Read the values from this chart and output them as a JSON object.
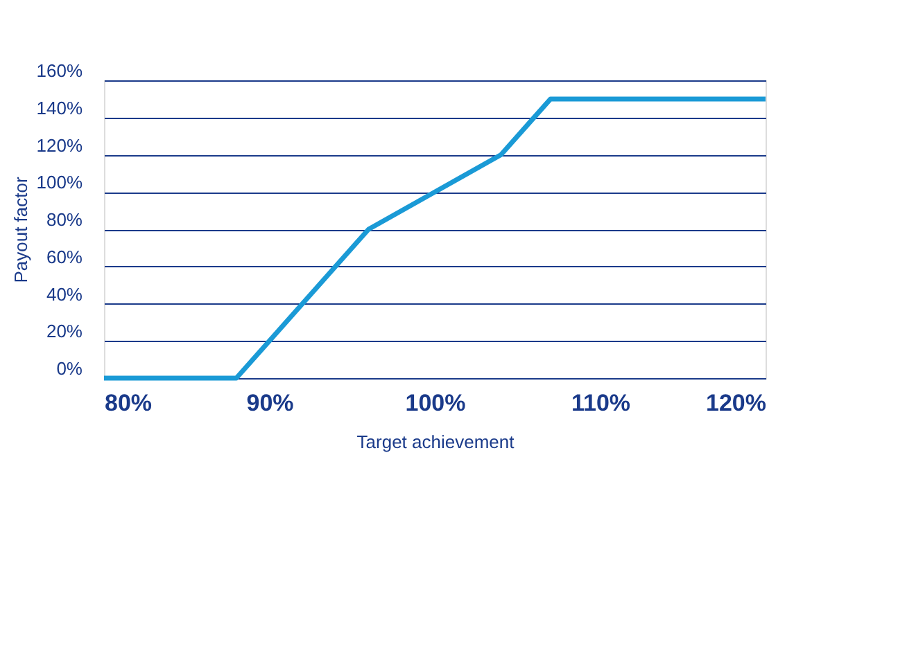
{
  "chart_data": {
    "type": "line",
    "xlabel": "Target achievement",
    "ylabel": "Payout factor",
    "x": [
      80,
      88,
      96,
      100,
      104,
      107,
      120
    ],
    "series": [
      {
        "color": "#1a9ad6",
        "values": [
          0,
          0,
          80,
          100,
          120,
          150,
          150
        ]
      }
    ],
    "xlim": [
      80,
      120
    ],
    "xticks": [
      {
        "value": 80,
        "label": "80%"
      },
      {
        "value": 90,
        "label": "90%"
      },
      {
        "value": 100,
        "label": "100%"
      },
      {
        "value": 110,
        "label": "110%"
      },
      {
        "value": 120,
        "label": "120%"
      }
    ],
    "ylim": [
      0,
      160
    ],
    "yticks": [
      {
        "value": 0,
        "label": "0%"
      },
      {
        "value": 20,
        "label": "20%"
      },
      {
        "value": 40,
        "label": "40%"
      },
      {
        "value": 60,
        "label": "60%"
      },
      {
        "value": 80,
        "label": "80%"
      },
      {
        "value": 100,
        "label": "100%"
      },
      {
        "value": 120,
        "label": "120%"
      },
      {
        "value": 140,
        "label": "140%"
      },
      {
        "value": 160,
        "label": "160%"
      }
    ],
    "grid": "y",
    "line_style": "solid",
    "marker": "none",
    "legend": false
  }
}
